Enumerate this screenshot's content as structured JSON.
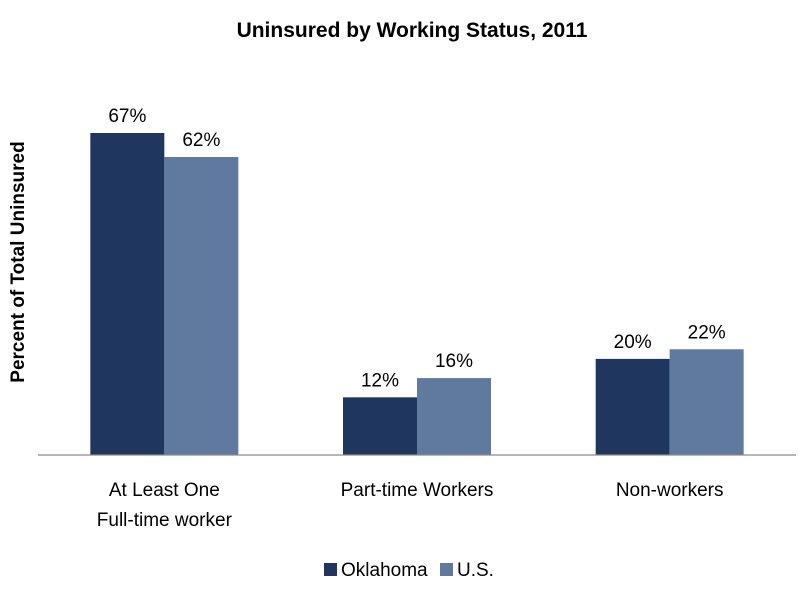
{
  "chart_data": {
    "type": "bar",
    "title": "Uninsured by Working Status, 2011",
    "xlabel": "",
    "ylabel": "Percent of Total Uninsured",
    "categories": [
      [
        "At Least One",
        "Full-time worker"
      ],
      [
        "Part-time Workers"
      ],
      [
        "Non-workers"
      ]
    ],
    "series": [
      {
        "name": "Oklahoma",
        "values": [
          67,
          12,
          20
        ],
        "labels": [
          "67%",
          "12%",
          "20%"
        ],
        "color": "#1f375f"
      },
      {
        "name": "U.S.",
        "values": [
          62,
          16,
          22
        ],
        "labels": [
          "62%",
          "16%",
          "22%"
        ],
        "color": "#60799f"
      }
    ],
    "ylim": [
      0,
      67
    ],
    "grid": false,
    "legend": "bottom"
  }
}
